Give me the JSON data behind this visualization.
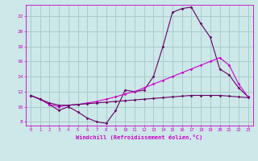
{
  "background_color": "#cce8e8",
  "grid_color": "#aacccc",
  "line_color_bright": "#cc00cc",
  "line_color_dark": "#660066",
  "xlim": [
    -0.5,
    23.5
  ],
  "ylim": [
    7.5,
    23.5
  ],
  "yticks": [
    8,
    10,
    12,
    14,
    16,
    18,
    20,
    22
  ],
  "xticks": [
    0,
    1,
    2,
    3,
    4,
    5,
    6,
    7,
    8,
    9,
    10,
    11,
    12,
    13,
    14,
    15,
    16,
    17,
    18,
    19,
    20,
    21,
    22,
    23
  ],
  "xlabel": "Windchill (Refroidissement éolien,°C)",
  "line1_x": [
    0,
    1,
    2,
    3,
    4,
    5,
    6,
    7,
    8,
    9,
    10,
    11,
    12,
    13,
    14,
    15,
    16,
    17,
    18,
    19,
    20,
    21,
    22,
    23
  ],
  "line1_y": [
    11.5,
    11.0,
    10.3,
    9.5,
    10.0,
    9.3,
    8.5,
    8.0,
    7.8,
    9.5,
    12.2,
    12.0,
    12.2,
    14.0,
    18.0,
    22.5,
    23.0,
    23.2,
    21.0,
    19.2,
    15.0,
    14.2,
    12.5,
    11.3
  ],
  "line2_x": [
    0,
    1,
    2,
    3,
    4,
    5,
    6,
    7,
    8,
    9,
    10,
    11,
    12,
    13,
    14,
    15,
    16,
    17,
    18,
    19,
    20,
    21,
    22,
    23
  ],
  "line2_y": [
    11.5,
    11.0,
    10.3,
    10.0,
    10.2,
    10.3,
    10.5,
    10.7,
    11.0,
    11.3,
    11.7,
    12.0,
    12.5,
    13.0,
    13.5,
    14.0,
    14.5,
    15.0,
    15.5,
    16.0,
    16.5,
    15.5,
    13.0,
    11.3
  ],
  "line3_x": [
    0,
    1,
    2,
    3,
    4,
    5,
    6,
    7,
    8,
    9,
    10,
    11,
    12,
    13,
    14,
    15,
    16,
    17,
    18,
    19,
    20,
    21,
    22,
    23
  ],
  "line3_y": [
    11.5,
    11.0,
    10.5,
    10.2,
    10.2,
    10.3,
    10.4,
    10.5,
    10.6,
    10.7,
    10.8,
    10.9,
    11.0,
    11.1,
    11.2,
    11.3,
    11.4,
    11.5,
    11.5,
    11.5,
    11.5,
    11.4,
    11.3,
    11.2
  ]
}
